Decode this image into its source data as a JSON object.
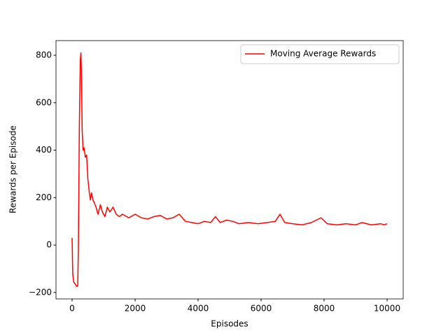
{
  "chart_data": {
    "type": "line",
    "xlabel": "Episodes",
    "ylabel": "Rewards per Episode",
    "x": [
      0,
      20,
      50,
      100,
      150,
      180,
      200,
      230,
      260,
      280,
      300,
      320,
      350,
      380,
      420,
      460,
      500,
      540,
      580,
      620,
      660,
      700,
      760,
      820,
      900,
      960,
      1040,
      1120,
      1200,
      1300,
      1400,
      1500,
      1600,
      1800,
      2000,
      2200,
      2400,
      2600,
      2800,
      3000,
      3200,
      3400,
      3600,
      3800,
      4000,
      4200,
      4400,
      4550,
      4700,
      4900,
      5100,
      5300,
      5600,
      5900,
      6200,
      6450,
      6600,
      6750,
      7000,
      7300,
      7600,
      7900,
      8100,
      8400,
      8700,
      9000,
      9200,
      9500,
      9800,
      9900,
      10000
    ],
    "series": [
      {
        "name": "Moving Average Rewards",
        "color": "#ff0000",
        "values": [
          30,
          -120,
          -155,
          -165,
          -175,
          -170,
          0,
          500,
          780,
          810,
          700,
          480,
          400,
          410,
          370,
          380,
          280,
          230,
          190,
          220,
          190,
          180,
          160,
          130,
          170,
          140,
          120,
          160,
          140,
          160,
          130,
          120,
          130,
          115,
          130,
          115,
          110,
          120,
          125,
          110,
          115,
          130,
          100,
          95,
          90,
          100,
          95,
          120,
          95,
          105,
          100,
          90,
          95,
          90,
          95,
          100,
          130,
          95,
          90,
          85,
          95,
          115,
          90,
          85,
          90,
          85,
          95,
          85,
          90,
          85,
          90
        ]
      }
    ],
    "xlim": [
      -511,
      10511
    ],
    "ylim": [
      -227,
      862
    ],
    "xticks": [
      0,
      2000,
      4000,
      6000,
      8000,
      10000
    ],
    "yticks": [
      {
        "value": -200,
        "label": "−200"
      },
      0,
      200,
      400,
      600,
      800
    ],
    "legend": "upper right"
  }
}
